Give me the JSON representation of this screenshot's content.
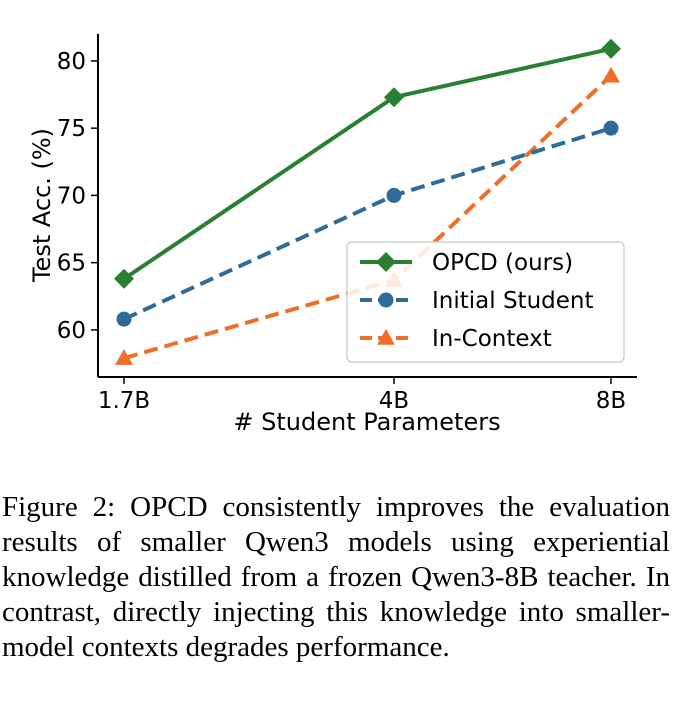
{
  "chart_data": {
    "type": "line",
    "categories": [
      "1.7B",
      "4B",
      "8B"
    ],
    "xlabel": "# Student Parameters",
    "ylabel": "Test Acc. (%)",
    "ylim": [
      56.5,
      82
    ],
    "yticks": [
      60,
      65,
      70,
      75,
      80
    ],
    "legend_position": "lower-right",
    "series": [
      {
        "name": "OPCD (ours)",
        "values": [
          63.8,
          77.3,
          80.9
        ],
        "color": "#2a7f32",
        "marker": "diamond",
        "style": "solid"
      },
      {
        "name": "Initial Student",
        "values": [
          60.8,
          70.0,
          75.0
        ],
        "color": "#2f6b99",
        "marker": "circle",
        "style": "dashed"
      },
      {
        "name": "In-Context",
        "values": [
          57.9,
          63.7,
          78.9
        ],
        "color": "#ef6f2a",
        "marker": "triangle",
        "style": "dashed"
      }
    ]
  },
  "caption": "Figure 2: OPCD consistently improves the evaluation results of smaller Qwen3 models using experiential knowledge distilled from a frozen Qwen3-8B teacher.  In contrast, directly injecting this knowledge into smaller-model contexts degrades performance."
}
